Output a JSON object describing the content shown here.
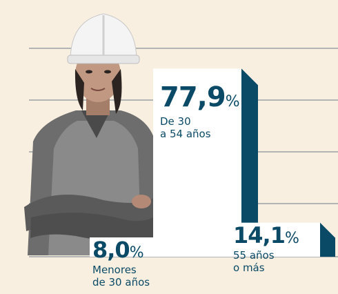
{
  "chart_data": {
    "type": "bar",
    "categories": [
      "Menores\nde 30 años",
      "De 30\na 54 años",
      "55 años\no más"
    ],
    "values": [
      8.0,
      77.9,
      14.1
    ],
    "value_labels": [
      "8,0",
      "77,9",
      "14,1"
    ],
    "unit": "%",
    "grid": true,
    "colors": {
      "bar_face": "#ffffff",
      "bar_side": "#0b4a66",
      "text": "#0b4a66",
      "grid": "#6b7a86",
      "background": "#f9efe1"
    }
  }
}
